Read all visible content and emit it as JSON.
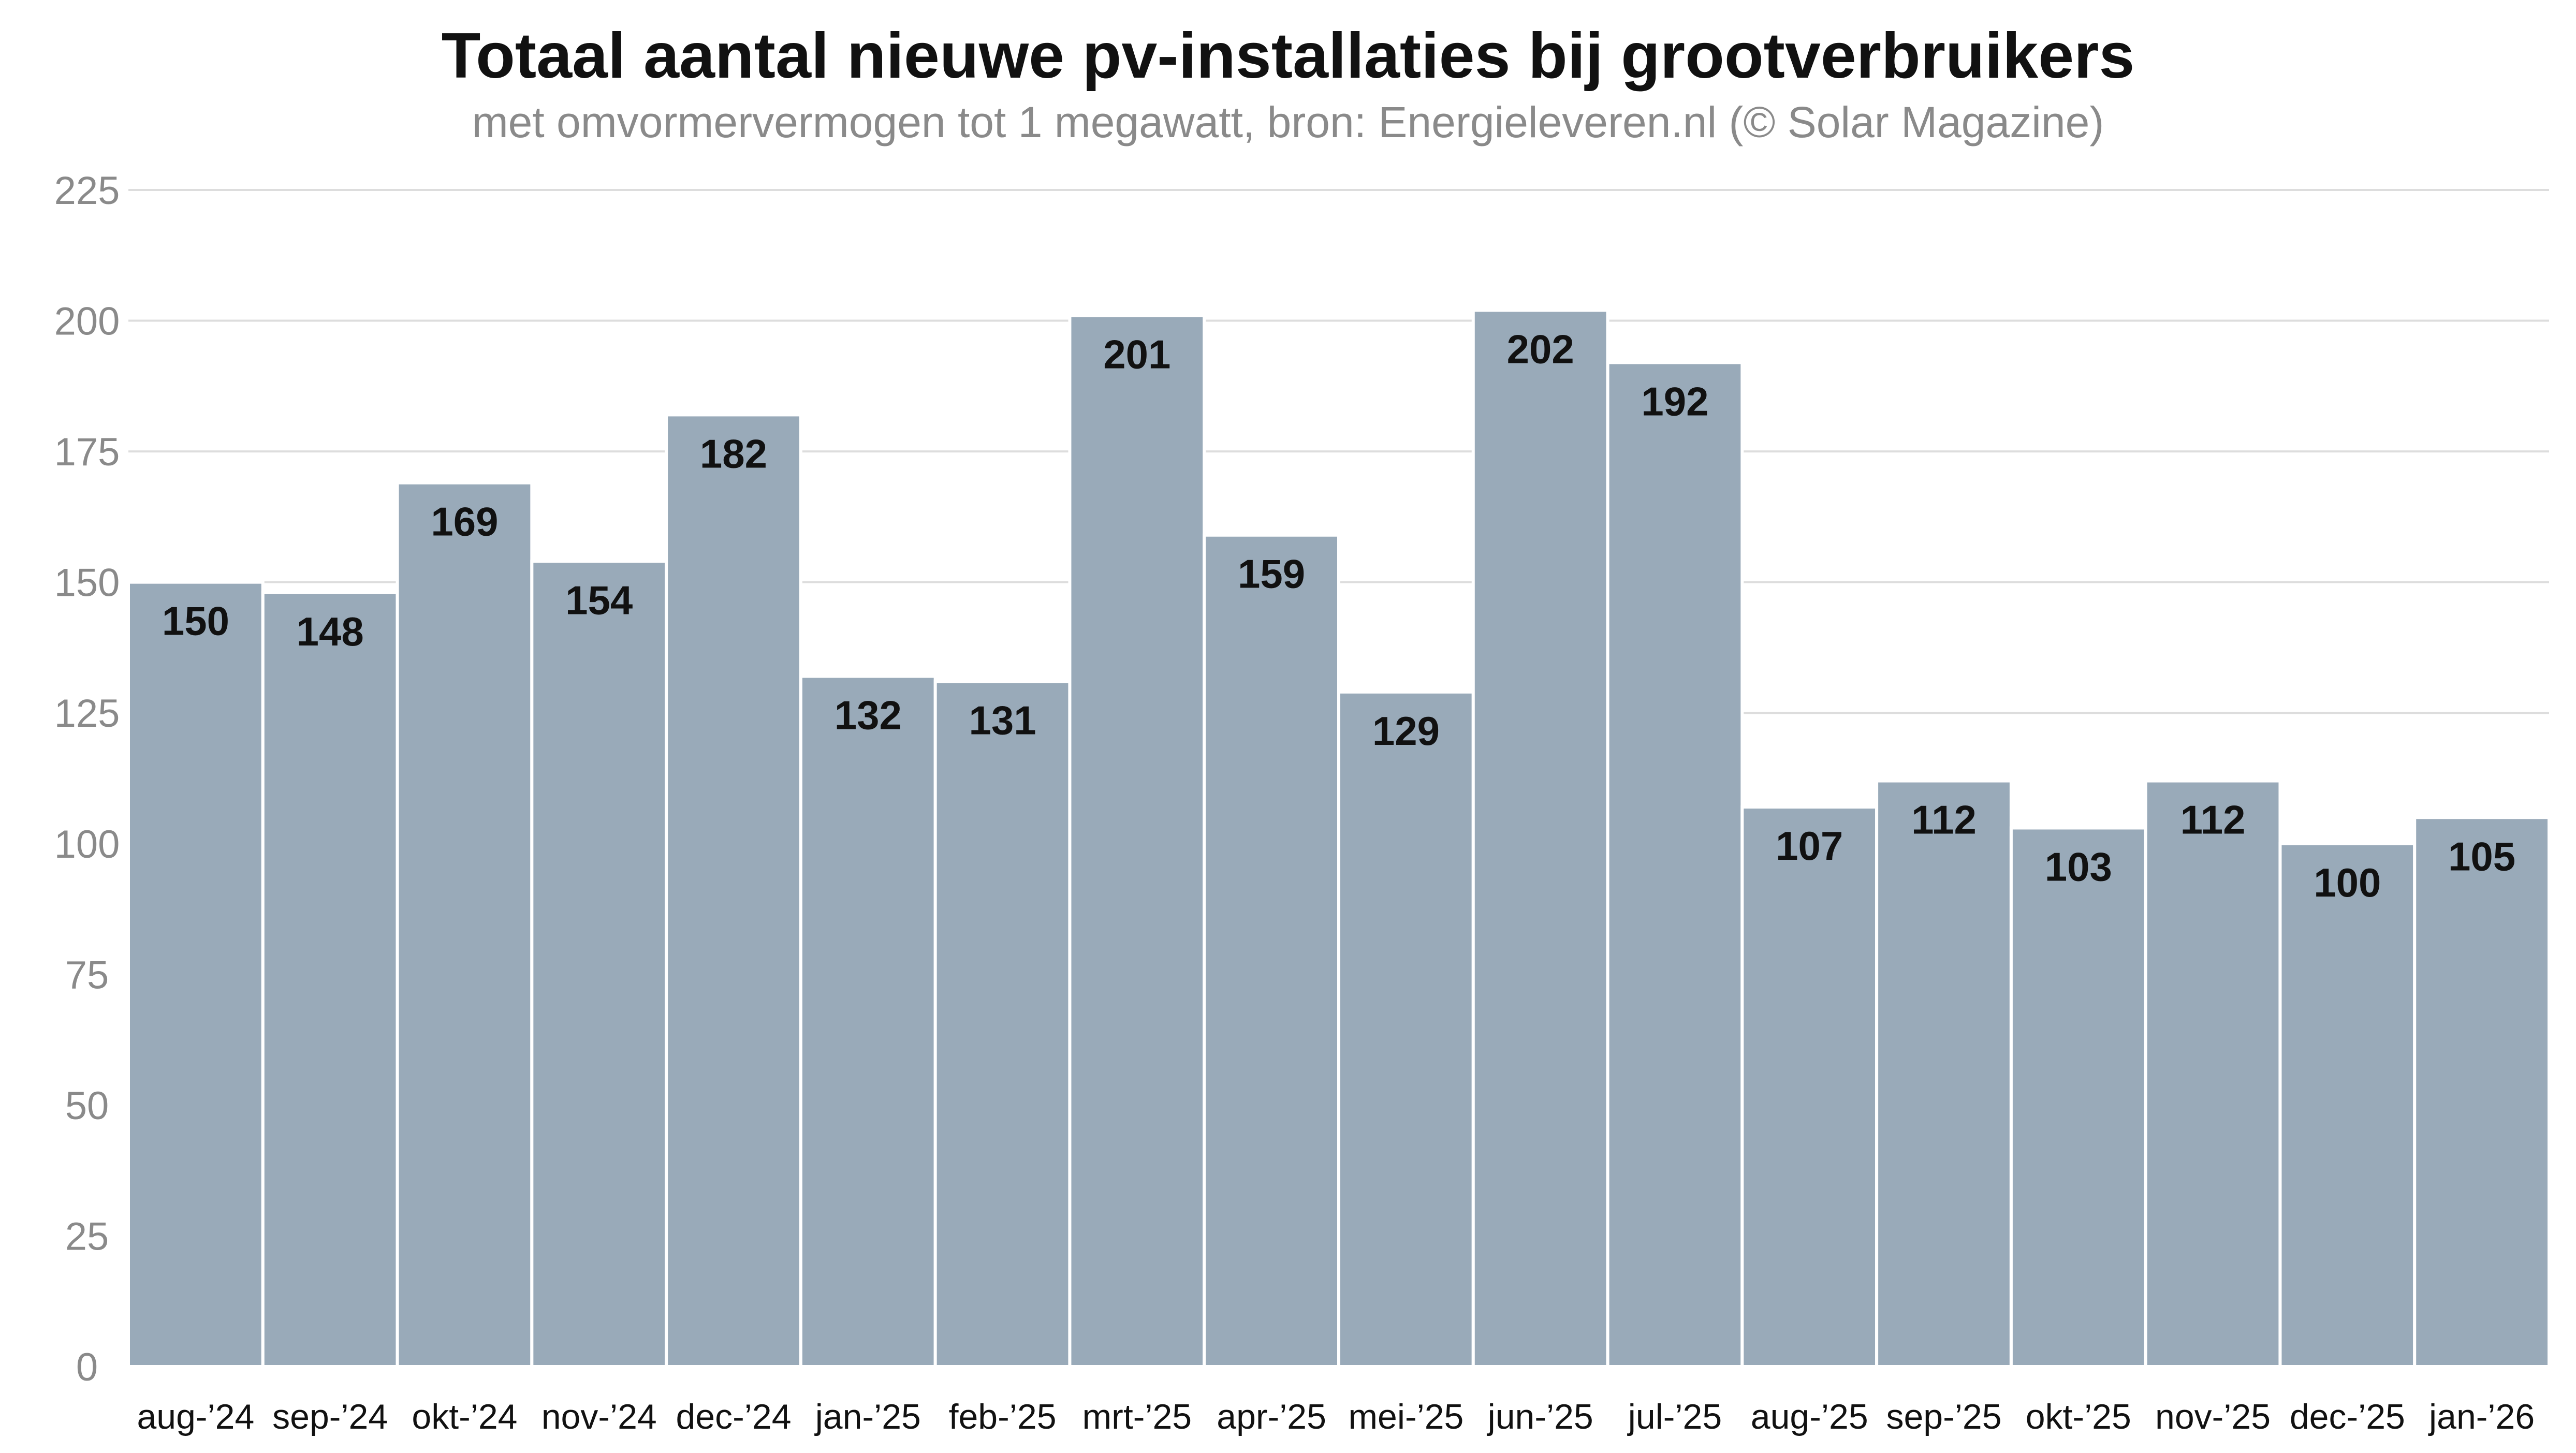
{
  "chart_data": {
    "type": "bar",
    "title": "Totaal aantal nieuwe pv-installaties bij grootverbruikers",
    "subtitle": "met omvormervermogen tot 1 megawatt, bron: Energieleveren.nl (© Solar Magazine)",
    "xlabel": "",
    "ylabel": "",
    "ylim": [
      0,
      225
    ],
    "yticks": [
      0,
      25,
      50,
      75,
      100,
      125,
      150,
      175,
      200,
      225
    ],
    "ytick_labels": [
      "0",
      "25",
      "50",
      "75",
      "100",
      "125",
      "150",
      "175",
      "200",
      "225"
    ],
    "grid": true,
    "bar_color": "#99aab9",
    "categories": [
      "aug-’24",
      "sep-’24",
      "okt-’24",
      "nov-’24",
      "dec-’24",
      "jan-’25",
      "feb-’25",
      "mrt-’25",
      "apr-’25",
      "mei-’25",
      "jun-’25",
      "jul-’25",
      "aug-’25",
      "sep-’25",
      "okt-’25",
      "nov-’25",
      "dec-’25",
      "jan-’26"
    ],
    "values": [
      150,
      148,
      169,
      154,
      182,
      132,
      131,
      201,
      159,
      129,
      202,
      192,
      107,
      112,
      103,
      112,
      100,
      105
    ],
    "value_labels": [
      "150",
      "148",
      "169",
      "154",
      "182",
      "132",
      "131",
      "201",
      "159",
      "129",
      "202",
      "192",
      "107",
      "112",
      "103",
      "112",
      "100",
      "105"
    ]
  }
}
